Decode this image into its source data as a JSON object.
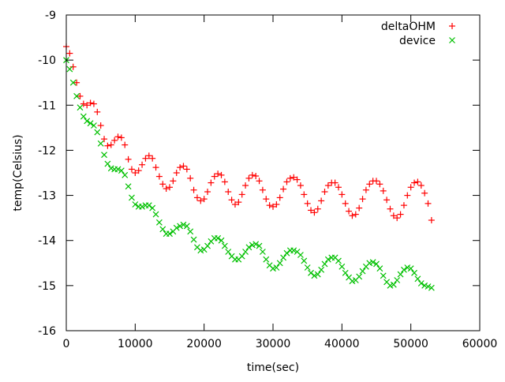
{
  "chart_data": {
    "type": "scatter",
    "xlabel": "time(sec)",
    "ylabel": "temp(Celsius)",
    "xlim": [
      0,
      60000
    ],
    "ylim": [
      -16,
      -9
    ],
    "x_ticks": [
      0,
      10000,
      20000,
      30000,
      40000,
      50000,
      60000
    ],
    "x_tick_labels": [
      "0",
      "10000",
      "20000",
      "30000",
      "40000",
      "50000",
      "60000"
    ],
    "y_ticks": [
      -16,
      -15,
      -14,
      -13,
      -12,
      -11,
      -10,
      -9
    ],
    "y_tick_labels": [
      "-16",
      "-15",
      "-14",
      "-13",
      "-12",
      "-11",
      "-10",
      "-9"
    ],
    "grid": false,
    "legend_position": "top-right",
    "series": [
      {
        "name": "deltaOHM",
        "marker": "+",
        "color": "#ff0000",
        "points": [
          [
            0,
            -9.7
          ],
          [
            500,
            -9.85
          ],
          [
            1000,
            -10.15
          ],
          [
            1500,
            -10.5
          ],
          [
            2000,
            -10.8
          ],
          [
            2500,
            -10.97
          ],
          [
            3000,
            -11.0
          ],
          [
            3500,
            -10.95
          ],
          [
            4000,
            -10.97
          ],
          [
            4500,
            -11.15
          ],
          [
            5000,
            -11.45
          ],
          [
            5500,
            -11.75
          ],
          [
            6000,
            -11.9
          ],
          [
            6500,
            -11.88
          ],
          [
            7000,
            -11.78
          ],
          [
            7500,
            -11.7
          ],
          [
            8000,
            -11.72
          ],
          [
            8500,
            -11.88
          ],
          [
            9000,
            -12.2
          ],
          [
            9500,
            -12.42
          ],
          [
            10000,
            -12.5
          ],
          [
            10500,
            -12.45
          ],
          [
            11000,
            -12.32
          ],
          [
            11500,
            -12.18
          ],
          [
            12000,
            -12.12
          ],
          [
            12500,
            -12.18
          ],
          [
            13000,
            -12.38
          ],
          [
            13500,
            -12.58
          ],
          [
            14000,
            -12.75
          ],
          [
            14500,
            -12.85
          ],
          [
            15000,
            -12.82
          ],
          [
            15500,
            -12.68
          ],
          [
            16000,
            -12.5
          ],
          [
            16500,
            -12.38
          ],
          [
            17000,
            -12.35
          ],
          [
            17500,
            -12.42
          ],
          [
            18000,
            -12.62
          ],
          [
            18500,
            -12.88
          ],
          [
            19000,
            -13.05
          ],
          [
            19500,
            -13.12
          ],
          [
            20000,
            -13.08
          ],
          [
            20500,
            -12.92
          ],
          [
            21000,
            -12.72
          ],
          [
            21500,
            -12.58
          ],
          [
            22000,
            -12.52
          ],
          [
            22500,
            -12.55
          ],
          [
            23000,
            -12.7
          ],
          [
            23500,
            -12.92
          ],
          [
            24000,
            -13.1
          ],
          [
            24500,
            -13.2
          ],
          [
            25000,
            -13.15
          ],
          [
            25500,
            -12.98
          ],
          [
            26000,
            -12.78
          ],
          [
            26500,
            -12.62
          ],
          [
            27000,
            -12.55
          ],
          [
            27500,
            -12.57
          ],
          [
            28000,
            -12.68
          ],
          [
            28500,
            -12.88
          ],
          [
            29000,
            -13.08
          ],
          [
            29500,
            -13.22
          ],
          [
            30000,
            -13.25
          ],
          [
            30500,
            -13.2
          ],
          [
            31000,
            -13.05
          ],
          [
            31500,
            -12.86
          ],
          [
            32000,
            -12.7
          ],
          [
            32500,
            -12.62
          ],
          [
            33000,
            -12.6
          ],
          [
            33500,
            -12.65
          ],
          [
            34000,
            -12.78
          ],
          [
            34500,
            -12.98
          ],
          [
            35000,
            -13.18
          ],
          [
            35500,
            -13.33
          ],
          [
            36000,
            -13.38
          ],
          [
            36500,
            -13.3
          ],
          [
            37000,
            -13.12
          ],
          [
            37500,
            -12.92
          ],
          [
            38000,
            -12.78
          ],
          [
            38500,
            -12.72
          ],
          [
            39000,
            -12.72
          ],
          [
            39500,
            -12.82
          ],
          [
            40000,
            -12.98
          ],
          [
            40500,
            -13.18
          ],
          [
            41000,
            -13.35
          ],
          [
            41500,
            -13.45
          ],
          [
            42000,
            -13.42
          ],
          [
            42500,
            -13.28
          ],
          [
            43000,
            -13.08
          ],
          [
            43500,
            -12.88
          ],
          [
            44000,
            -12.75
          ],
          [
            44500,
            -12.68
          ],
          [
            45000,
            -12.68
          ],
          [
            45500,
            -12.75
          ],
          [
            46000,
            -12.9
          ],
          [
            46500,
            -13.1
          ],
          [
            47000,
            -13.3
          ],
          [
            47500,
            -13.45
          ],
          [
            48000,
            -13.5
          ],
          [
            48500,
            -13.42
          ],
          [
            49000,
            -13.22
          ],
          [
            49500,
            -13.0
          ],
          [
            50000,
            -12.82
          ],
          [
            50500,
            -12.72
          ],
          [
            51000,
            -12.7
          ],
          [
            51500,
            -12.78
          ],
          [
            52000,
            -12.95
          ],
          [
            52500,
            -13.18
          ],
          [
            53000,
            -13.55
          ]
        ]
      },
      {
        "name": "device",
        "marker": "x",
        "color": "#00c000",
        "points": [
          [
            0,
            -10.0
          ],
          [
            500,
            -10.2
          ],
          [
            1000,
            -10.5
          ],
          [
            1500,
            -10.8
          ],
          [
            2000,
            -11.05
          ],
          [
            2500,
            -11.25
          ],
          [
            3000,
            -11.35
          ],
          [
            3500,
            -11.4
          ],
          [
            4000,
            -11.45
          ],
          [
            4500,
            -11.6
          ],
          [
            5000,
            -11.85
          ],
          [
            5500,
            -12.1
          ],
          [
            6000,
            -12.3
          ],
          [
            6500,
            -12.4
          ],
          [
            7000,
            -12.42
          ],
          [
            7500,
            -12.42
          ],
          [
            8000,
            -12.45
          ],
          [
            8500,
            -12.55
          ],
          [
            9000,
            -12.8
          ],
          [
            9500,
            -13.05
          ],
          [
            10000,
            -13.2
          ],
          [
            10500,
            -13.25
          ],
          [
            11000,
            -13.25
          ],
          [
            11500,
            -13.22
          ],
          [
            12000,
            -13.22
          ],
          [
            12500,
            -13.28
          ],
          [
            13000,
            -13.42
          ],
          [
            13500,
            -13.6
          ],
          [
            14000,
            -13.75
          ],
          [
            14500,
            -13.85
          ],
          [
            15000,
            -13.85
          ],
          [
            15500,
            -13.8
          ],
          [
            16000,
            -13.72
          ],
          [
            16500,
            -13.68
          ],
          [
            17000,
            -13.65
          ],
          [
            17500,
            -13.68
          ],
          [
            18000,
            -13.8
          ],
          [
            18500,
            -13.98
          ],
          [
            19000,
            -14.15
          ],
          [
            19500,
            -14.22
          ],
          [
            20000,
            -14.2
          ],
          [
            20500,
            -14.12
          ],
          [
            21000,
            -14.02
          ],
          [
            21500,
            -13.95
          ],
          [
            22000,
            -13.95
          ],
          [
            22500,
            -14.0
          ],
          [
            23000,
            -14.12
          ],
          [
            23500,
            -14.25
          ],
          [
            24000,
            -14.35
          ],
          [
            24500,
            -14.42
          ],
          [
            25000,
            -14.42
          ],
          [
            25500,
            -14.35
          ],
          [
            26000,
            -14.25
          ],
          [
            26500,
            -14.15
          ],
          [
            27000,
            -14.1
          ],
          [
            27500,
            -14.08
          ],
          [
            28000,
            -14.12
          ],
          [
            28500,
            -14.25
          ],
          [
            29000,
            -14.42
          ],
          [
            29500,
            -14.55
          ],
          [
            30000,
            -14.62
          ],
          [
            30500,
            -14.6
          ],
          [
            31000,
            -14.5
          ],
          [
            31500,
            -14.38
          ],
          [
            32000,
            -14.28
          ],
          [
            32500,
            -14.22
          ],
          [
            33000,
            -14.22
          ],
          [
            33500,
            -14.25
          ],
          [
            34000,
            -14.32
          ],
          [
            34500,
            -14.45
          ],
          [
            35000,
            -14.6
          ],
          [
            35500,
            -14.72
          ],
          [
            36000,
            -14.78
          ],
          [
            36500,
            -14.75
          ],
          [
            37000,
            -14.65
          ],
          [
            37500,
            -14.52
          ],
          [
            38000,
            -14.42
          ],
          [
            38500,
            -14.38
          ],
          [
            39000,
            -14.38
          ],
          [
            39500,
            -14.45
          ],
          [
            40000,
            -14.58
          ],
          [
            40500,
            -14.72
          ],
          [
            41000,
            -14.82
          ],
          [
            41500,
            -14.9
          ],
          [
            42000,
            -14.88
          ],
          [
            42500,
            -14.8
          ],
          [
            43000,
            -14.68
          ],
          [
            43500,
            -14.58
          ],
          [
            44000,
            -14.5
          ],
          [
            44500,
            -14.48
          ],
          [
            45000,
            -14.52
          ],
          [
            45500,
            -14.62
          ],
          [
            46000,
            -14.78
          ],
          [
            46500,
            -14.92
          ],
          [
            47000,
            -15.0
          ],
          [
            47500,
            -14.98
          ],
          [
            48000,
            -14.88
          ],
          [
            48500,
            -14.75
          ],
          [
            49000,
            -14.65
          ],
          [
            49500,
            -14.6
          ],
          [
            50000,
            -14.62
          ],
          [
            50500,
            -14.72
          ],
          [
            51000,
            -14.85
          ],
          [
            51500,
            -14.95
          ],
          [
            52000,
            -15.0
          ],
          [
            52500,
            -15.02
          ],
          [
            53000,
            -15.05
          ]
        ]
      }
    ]
  }
}
